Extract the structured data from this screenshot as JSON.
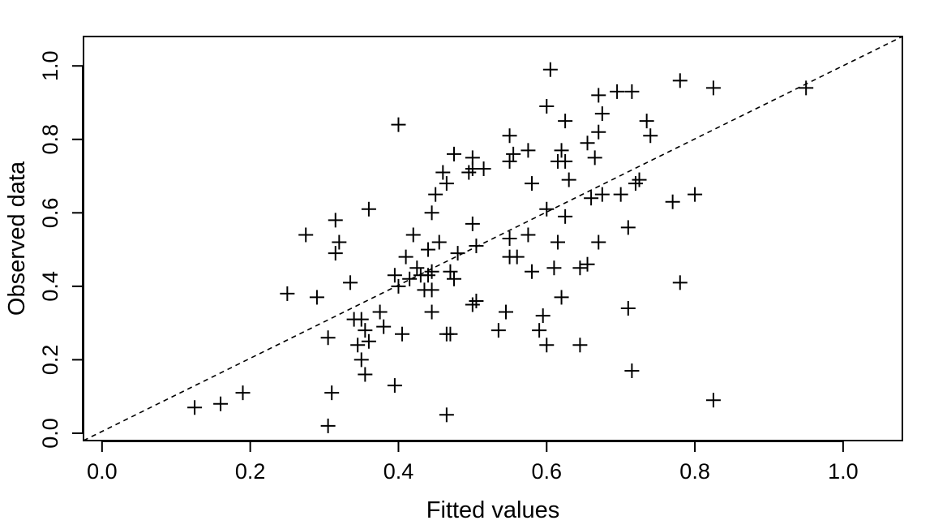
{
  "chart_data": {
    "type": "scatter",
    "title": "",
    "xlabel": "Fitted values",
    "ylabel": "Observed data",
    "xlim": [
      -0.025,
      1.08
    ],
    "ylim": [
      -0.02,
      1.08
    ],
    "xticks": [
      0.0,
      0.2,
      0.4,
      0.6,
      0.8,
      1.0
    ],
    "xtick_labels": [
      "0.0",
      "0.2",
      "0.4",
      "0.6",
      "0.8",
      "1.0"
    ],
    "yticks": [
      0.0,
      0.2,
      0.4,
      0.6,
      0.8,
      1.0
    ],
    "ytick_labels": [
      "0.0",
      "0.2",
      "0.4",
      "0.6",
      "0.8",
      "1.0"
    ],
    "marker": "plus",
    "grid": false,
    "reference_line": {
      "style": "dashed",
      "from": [
        -0.025,
        -0.02
      ],
      "to": [
        1.08,
        1.08
      ]
    },
    "points": [
      [
        0.125,
        0.07
      ],
      [
        0.16,
        0.08
      ],
      [
        0.19,
        0.11
      ],
      [
        0.25,
        0.38
      ],
      [
        0.275,
        0.54
      ],
      [
        0.29,
        0.37
      ],
      [
        0.305,
        0.26
      ],
      [
        0.305,
        0.02
      ],
      [
        0.31,
        0.11
      ],
      [
        0.315,
        0.58
      ],
      [
        0.315,
        0.49
      ],
      [
        0.32,
        0.52
      ],
      [
        0.335,
        0.41
      ],
      [
        0.34,
        0.31
      ],
      [
        0.345,
        0.24
      ],
      [
        0.35,
        0.2
      ],
      [
        0.35,
        0.31
      ],
      [
        0.355,
        0.16
      ],
      [
        0.355,
        0.28
      ],
      [
        0.36,
        0.25
      ],
      [
        0.36,
        0.61
      ],
      [
        0.375,
        0.33
      ],
      [
        0.38,
        0.29
      ],
      [
        0.395,
        0.13
      ],
      [
        0.395,
        0.43
      ],
      [
        0.4,
        0.84
      ],
      [
        0.4,
        0.4
      ],
      [
        0.405,
        0.27
      ],
      [
        0.41,
        0.48
      ],
      [
        0.415,
        0.42
      ],
      [
        0.42,
        0.54
      ],
      [
        0.425,
        0.45
      ],
      [
        0.43,
        0.43
      ],
      [
        0.435,
        0.39
      ],
      [
        0.44,
        0.5
      ],
      [
        0.44,
        0.43
      ],
      [
        0.445,
        0.33
      ],
      [
        0.445,
        0.6
      ],
      [
        0.445,
        0.44
      ],
      [
        0.445,
        0.39
      ],
      [
        0.45,
        0.65
      ],
      [
        0.455,
        0.52
      ],
      [
        0.46,
        0.71
      ],
      [
        0.465,
        0.27
      ],
      [
        0.465,
        0.05
      ],
      [
        0.465,
        0.68
      ],
      [
        0.47,
        0.44
      ],
      [
        0.47,
        0.27
      ],
      [
        0.475,
        0.76
      ],
      [
        0.475,
        0.42
      ],
      [
        0.48,
        0.49
      ],
      [
        0.495,
        0.71
      ],
      [
        0.5,
        0.75
      ],
      [
        0.5,
        0.72
      ],
      [
        0.5,
        0.57
      ],
      [
        0.5,
        0.35
      ],
      [
        0.505,
        0.36
      ],
      [
        0.505,
        0.51
      ],
      [
        0.515,
        0.72
      ],
      [
        0.535,
        0.28
      ],
      [
        0.545,
        0.33
      ],
      [
        0.55,
        0.81
      ],
      [
        0.55,
        0.74
      ],
      [
        0.55,
        0.53
      ],
      [
        0.55,
        0.48
      ],
      [
        0.555,
        0.76
      ],
      [
        0.56,
        0.48
      ],
      [
        0.575,
        0.77
      ],
      [
        0.575,
        0.54
      ],
      [
        0.58,
        0.68
      ],
      [
        0.58,
        0.44
      ],
      [
        0.59,
        0.28
      ],
      [
        0.595,
        0.32
      ],
      [
        0.6,
        0.89
      ],
      [
        0.6,
        0.61
      ],
      [
        0.6,
        0.24
      ],
      [
        0.605,
        0.99
      ],
      [
        0.61,
        0.45
      ],
      [
        0.615,
        0.52
      ],
      [
        0.615,
        0.74
      ],
      [
        0.62,
        0.77
      ],
      [
        0.62,
        0.37
      ],
      [
        0.625,
        0.85
      ],
      [
        0.625,
        0.74
      ],
      [
        0.625,
        0.59
      ],
      [
        0.63,
        0.69
      ],
      [
        0.645,
        0.45
      ],
      [
        0.645,
        0.24
      ],
      [
        0.655,
        0.79
      ],
      [
        0.655,
        0.46
      ],
      [
        0.66,
        0.64
      ],
      [
        0.665,
        0.75
      ],
      [
        0.67,
        0.52
      ],
      [
        0.67,
        0.92
      ],
      [
        0.67,
        0.82
      ],
      [
        0.675,
        0.87
      ],
      [
        0.675,
        0.65
      ],
      [
        0.695,
        0.93
      ],
      [
        0.7,
        0.65
      ],
      [
        0.71,
        0.56
      ],
      [
        0.71,
        0.34
      ],
      [
        0.715,
        0.93
      ],
      [
        0.715,
        0.17
      ],
      [
        0.72,
        0.68
      ],
      [
        0.725,
        0.69
      ],
      [
        0.735,
        0.85
      ],
      [
        0.74,
        0.81
      ],
      [
        0.77,
        0.63
      ],
      [
        0.78,
        0.96
      ],
      [
        0.78,
        0.41
      ],
      [
        0.8,
        0.65
      ],
      [
        0.825,
        0.94
      ],
      [
        0.825,
        0.09
      ],
      [
        0.95,
        0.94
      ]
    ]
  }
}
